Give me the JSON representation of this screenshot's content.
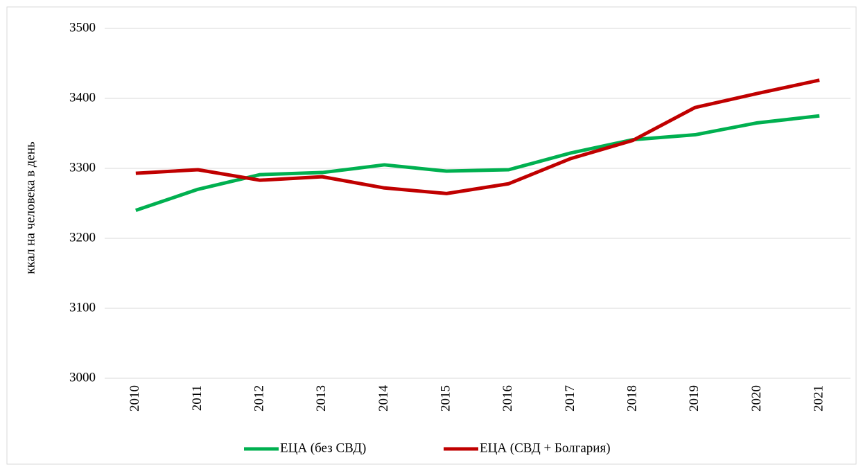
{
  "chart_data": {
    "type": "line",
    "y_label": "ккал на человека в день",
    "categories": [
      "2010",
      "2011",
      "2012",
      "2013",
      "2014",
      "2015",
      "2016",
      "2017",
      "2018",
      "2019",
      "2020",
      "2021"
    ],
    "series": [
      {
        "name": "ЕЦА (без СВД)",
        "color": "#00b050",
        "values": [
          3240,
          3270,
          3291,
          3294,
          3305,
          3296,
          3298,
          3322,
          3341,
          3348,
          3365,
          3375
        ]
      },
      {
        "name": "ЕЦА (СВД + Болгария)",
        "color": "#c00000",
        "values": [
          3293,
          3298,
          3283,
          3288,
          3272,
          3264,
          3278,
          3314,
          3340,
          3387,
          3407,
          3426
        ]
      }
    ],
    "ylim": [
      3000,
      3500
    ],
    "yticks": [
      3000,
      3100,
      3200,
      3300,
      3400,
      3500
    ],
    "grid": true,
    "legend": "bottom"
  }
}
